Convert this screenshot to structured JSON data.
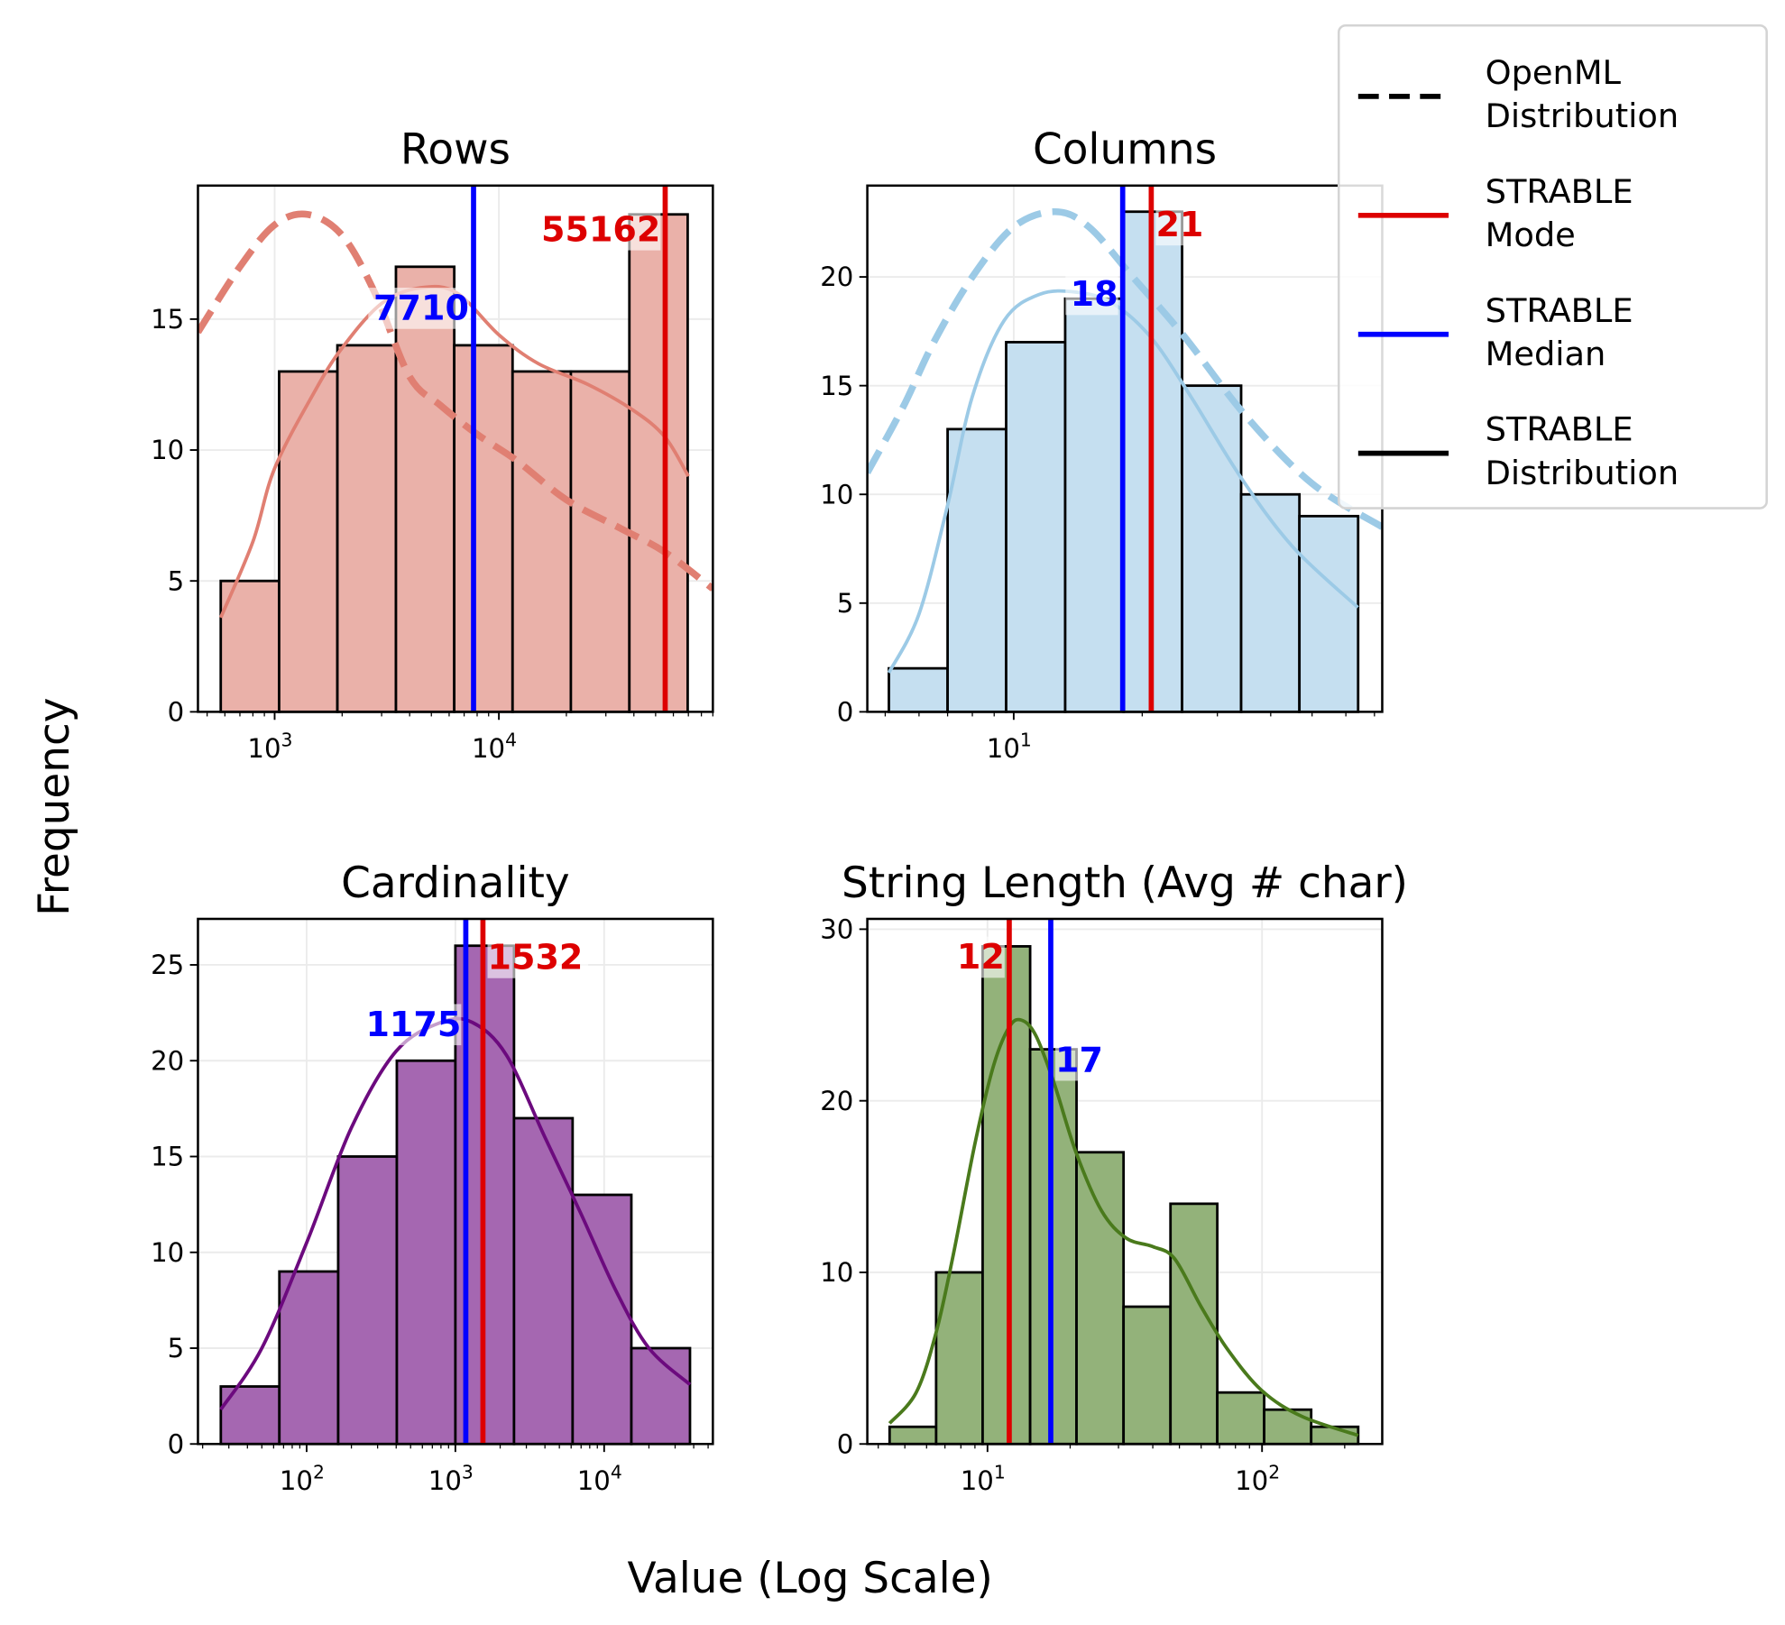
{
  "chart_data": [
    {
      "type": "bar",
      "title": "Rows",
      "xscale": "log",
      "xlim": [
        455,
        90000
      ],
      "ylim": [
        0,
        20.1
      ],
      "xticks": [
        {
          "value": 1000,
          "base": "10",
          "exp": "3"
        },
        {
          "value": 10000,
          "base": "10",
          "exp": "4"
        }
      ],
      "yticks": [
        0,
        5,
        10,
        15
      ],
      "bin_edges": [
        575,
        1047,
        1905,
        3475,
        6324,
        11510,
        20940,
        38190,
        69500
      ],
      "counts": [
        5,
        13,
        14,
        17,
        14,
        13,
        13,
        19
      ],
      "median": 7710,
      "median_label": "7710",
      "mode": 55162,
      "mode_label": "55162",
      "fill_color": "#eab1a9",
      "line_color": "#e07f72",
      "strable_kde": [
        [
          575,
          3.6
        ],
        [
          800,
          6.5
        ],
        [
          1000,
          9.3
        ],
        [
          1500,
          12.2
        ],
        [
          2000,
          13.9
        ],
        [
          3000,
          15.6
        ],
        [
          4500,
          16.2
        ],
        [
          6500,
          16
        ],
        [
          10000,
          14.4
        ],
        [
          15000,
          13.3
        ],
        [
          25000,
          12.5
        ],
        [
          40000,
          11.5
        ],
        [
          55000,
          10.5
        ],
        [
          70000,
          9
        ]
      ],
      "openml_kde": [
        [
          455,
          14.5
        ],
        [
          700,
          17
        ],
        [
          1000,
          18.6
        ],
        [
          1400,
          19
        ],
        [
          2000,
          18.2
        ],
        [
          2800,
          16
        ],
        [
          4000,
          12.8
        ],
        [
          5500,
          11.7
        ],
        [
          8000,
          10.6
        ],
        [
          12000,
          9.6
        ],
        [
          20000,
          8.1
        ],
        [
          35000,
          7
        ],
        [
          55000,
          6.1
        ],
        [
          90000,
          4.7
        ]
      ]
    },
    {
      "type": "bar",
      "title": "Columns",
      "xscale": "log",
      "xlim": [
        4.54,
        73
      ],
      "ylim": [
        0,
        24.2
      ],
      "xticks": [
        {
          "value": 10,
          "base": "10",
          "exp": "1"
        }
      ],
      "yticks": [
        0,
        5,
        10,
        15,
        20
      ],
      "bin_edges": [
        5.1,
        7.0,
        9.6,
        13.2,
        18.1,
        24.8,
        34.1,
        46.7,
        64.1
      ],
      "counts": [
        2,
        13,
        17,
        19,
        23,
        15,
        10,
        9
      ],
      "median": 18,
      "median_label": "18",
      "mode": 21,
      "mode_label": "21",
      "fill_color": "#c5dff0",
      "line_color": "#9ccae6",
      "strable_kde": [
        [
          5.1,
          1.8
        ],
        [
          6,
          4.5
        ],
        [
          7,
          9.5
        ],
        [
          8,
          14.5
        ],
        [
          9.5,
          18
        ],
        [
          11.5,
          19.2
        ],
        [
          14,
          19.3
        ],
        [
          17,
          18.8
        ],
        [
          21,
          17.2
        ],
        [
          26,
          14.5
        ],
        [
          34,
          10.8
        ],
        [
          45,
          7.6
        ],
        [
          64,
          4.8
        ]
      ],
      "openml_kde": [
        [
          4.54,
          11
        ],
        [
          5.5,
          14
        ],
        [
          6.5,
          17
        ],
        [
          8,
          20
        ],
        [
          10,
          22.3
        ],
        [
          12.5,
          23
        ],
        [
          15,
          22.3
        ],
        [
          19,
          20
        ],
        [
          25,
          17.3
        ],
        [
          35,
          13.6
        ],
        [
          50,
          10.5
        ],
        [
          73,
          8.5
        ]
      ]
    },
    {
      "type": "bar",
      "title": "Cardinality",
      "xscale": "log",
      "xlim": [
        18.6,
        53800
      ],
      "ylim": [
        0,
        27.4
      ],
      "xticks": [
        {
          "value": 100,
          "base": "10",
          "exp": "2"
        },
        {
          "value": 1000,
          "base": "10",
          "exp": "3"
        },
        {
          "value": 10000,
          "base": "10",
          "exp": "4"
        }
      ],
      "yticks": [
        0,
        5,
        10,
        15,
        20,
        25
      ],
      "bin_edges": [
        26.5,
        65.6,
        163,
        404,
        1000,
        2478,
        6138,
        15240,
        37760
      ],
      "counts": [
        3,
        9,
        15,
        20,
        26,
        17,
        13,
        5
      ],
      "median": 1175,
      "median_label": "1175",
      "mode": 1532,
      "mode_label": "1532",
      "fill_color": "#a567b1",
      "line_color": "#6c0a7e",
      "strable_kde": [
        [
          26.5,
          1.8
        ],
        [
          50,
          5
        ],
        [
          100,
          10.5
        ],
        [
          200,
          16.5
        ],
        [
          400,
          20.5
        ],
        [
          800,
          22
        ],
        [
          1300,
          22
        ],
        [
          2200,
          20.3
        ],
        [
          4000,
          16
        ],
        [
          7000,
          12
        ],
        [
          12000,
          8
        ],
        [
          20000,
          5
        ],
        [
          37760,
          3.1
        ]
      ],
      "openml_kde": []
    },
    {
      "type": "bar",
      "title": "String Length (Avg # char)",
      "xscale": "log",
      "xlim": [
        3.65,
        274
      ],
      "ylim": [
        0,
        30.6
      ],
      "xticks": [
        {
          "value": 10,
          "base": "10",
          "exp": "1"
        },
        {
          "value": 100,
          "base": "10",
          "exp": "2"
        }
      ],
      "yticks": [
        0,
        10,
        20,
        30
      ],
      "bin_edges": [
        4.4,
        6.5,
        9.6,
        14.3,
        21.1,
        31.3,
        46.4,
        68.7,
        101.8,
        151,
        224
      ],
      "counts": [
        1,
        10,
        29,
        23,
        17,
        8,
        14,
        3,
        2,
        1
      ],
      "median": 17,
      "median_label": "17",
      "mode": 12,
      "mode_label": "12",
      "fill_color": "#93b27a",
      "line_color": "#4a7a1c",
      "strable_kde": [
        [
          4.4,
          1.2
        ],
        [
          5.5,
          3
        ],
        [
          6.5,
          6.5
        ],
        [
          7.5,
          11
        ],
        [
          9,
          17.5
        ],
        [
          10.5,
          22
        ],
        [
          12,
          24.3
        ],
        [
          13.3,
          24.7
        ],
        [
          15,
          23.8
        ],
        [
          17.5,
          21
        ],
        [
          21,
          17
        ],
        [
          26,
          13.6
        ],
        [
          32,
          12
        ],
        [
          40,
          11.5
        ],
        [
          48,
          10.8
        ],
        [
          60,
          8
        ],
        [
          75,
          5.5
        ],
        [
          100,
          3.1
        ],
        [
          140,
          1.6
        ],
        [
          224,
          0.5
        ]
      ],
      "openml_kde": []
    }
  ],
  "axes": {
    "ylabel": "Frequency",
    "xlabel": "Value (Log Scale)"
  },
  "legend": {
    "placement": "top-right",
    "items": [
      {
        "line1": "OpenML",
        "line2": "Distribution",
        "style": "dashed",
        "color": "#000000"
      },
      {
        "line1": "STRABLE",
        "line2": "Mode",
        "style": "solid",
        "color": "#dd0000"
      },
      {
        "line1": "STRABLE",
        "line2": "Median",
        "style": "solid",
        "color": "#0000ff"
      },
      {
        "line1": "STRABLE",
        "line2": "Distribution",
        "style": "solid",
        "color": "#000000"
      }
    ]
  },
  "colors": {
    "median": "#0000ff",
    "mode": "#dd0000"
  }
}
